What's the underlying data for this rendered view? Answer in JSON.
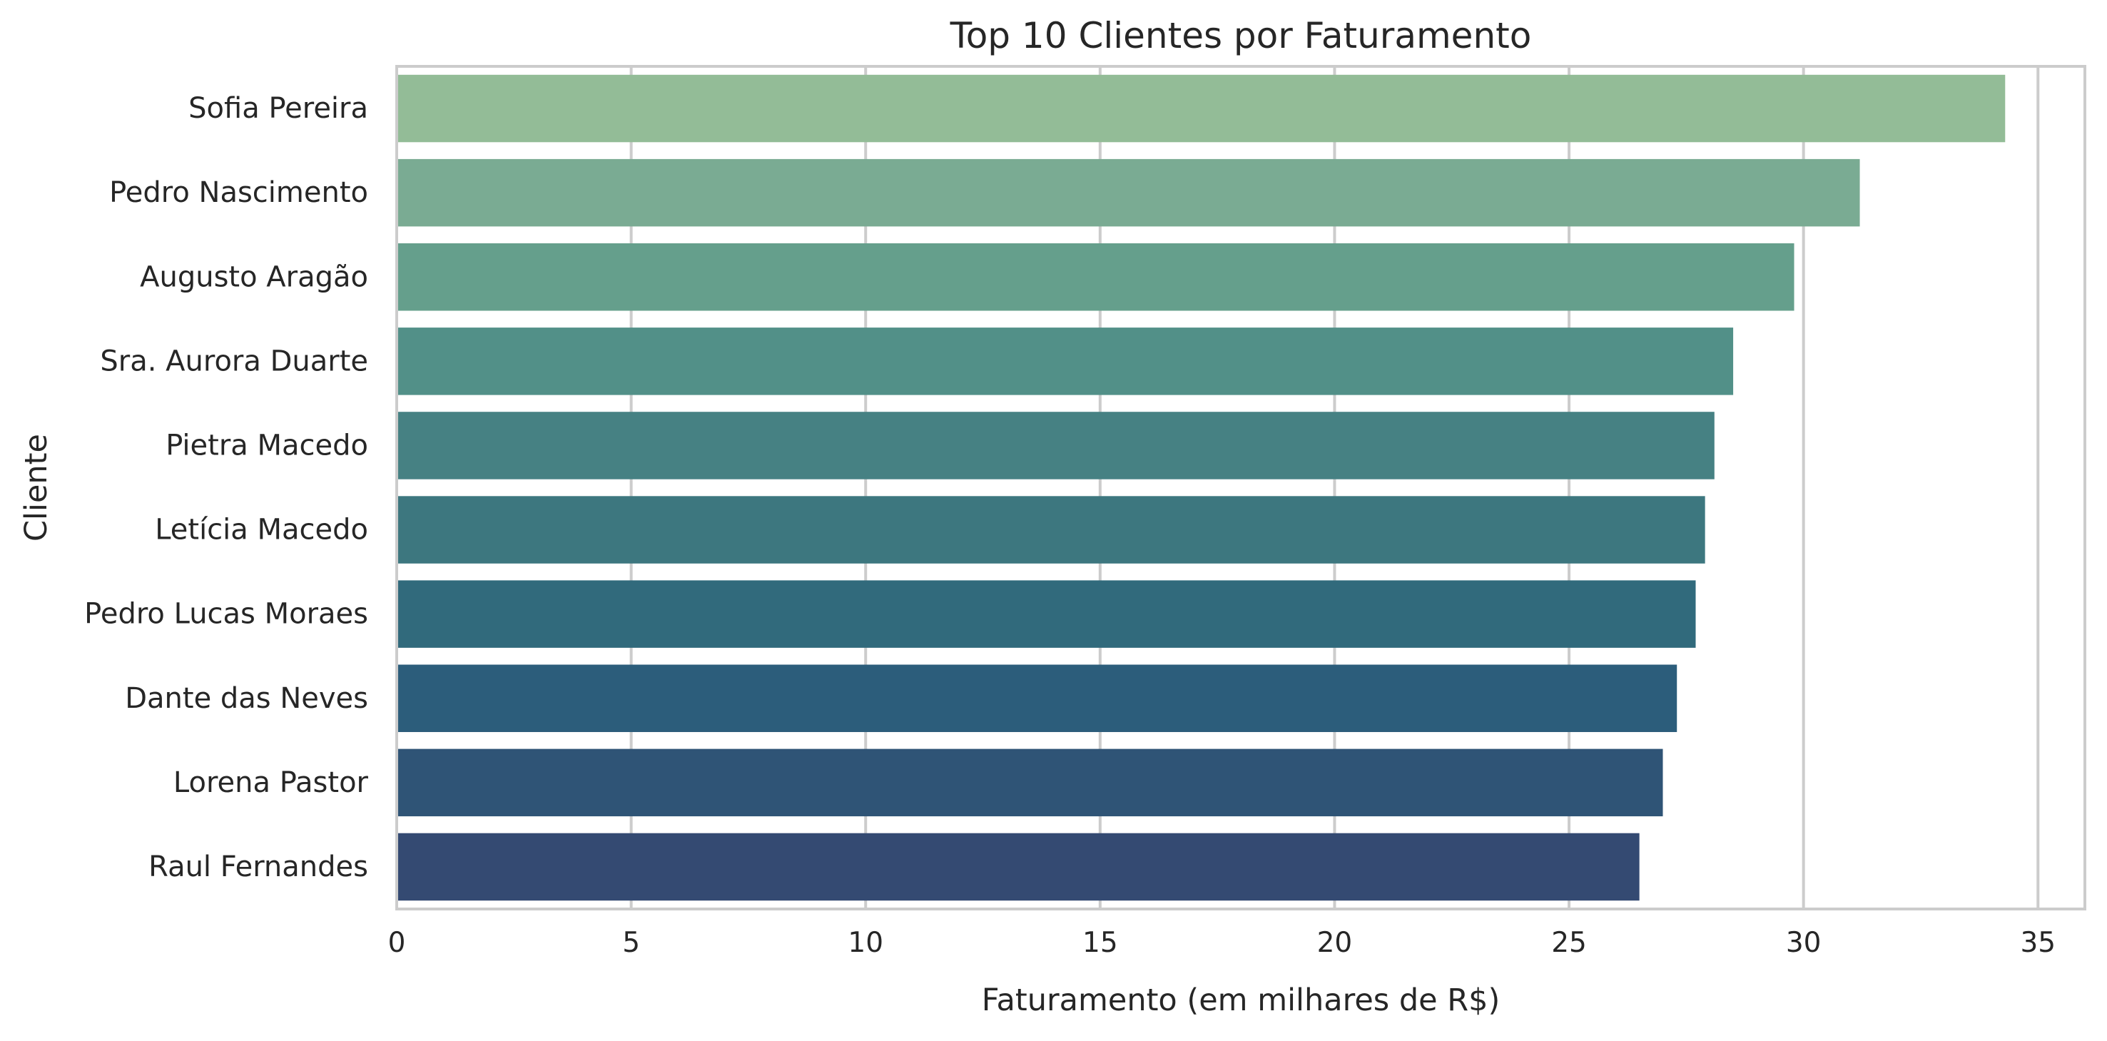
{
  "chart_data": {
    "type": "bar",
    "orientation": "horizontal",
    "title": "Top 10 Clientes por Faturamento",
    "xlabel": "Faturamento (em milhares de R$)",
    "ylabel": "Cliente",
    "xlim": [
      0,
      36
    ],
    "xticks": [
      0,
      5,
      10,
      15,
      20,
      25,
      30,
      35
    ],
    "grid": "vertical",
    "categories": [
      "Sofia Pereira",
      "Pedro Nascimento",
      "Augusto Aragão",
      "Sra. Aurora Duarte",
      "Pietra Macedo",
      "Letícia Macedo",
      "Pedro Lucas Moraes",
      "Dante das Neves",
      "Lorena Pastor",
      "Raul Fernandes"
    ],
    "values": [
      34.3,
      31.2,
      29.8,
      28.5,
      28.1,
      27.9,
      27.7,
      27.3,
      27.0,
      26.5
    ],
    "colors": [
      "#93bc97",
      "#7aab93",
      "#659f8c",
      "#529088",
      "#468183",
      "#3d777f",
      "#316a7c",
      "#2c5d7b",
      "#2f5476",
      "#344a72"
    ]
  }
}
